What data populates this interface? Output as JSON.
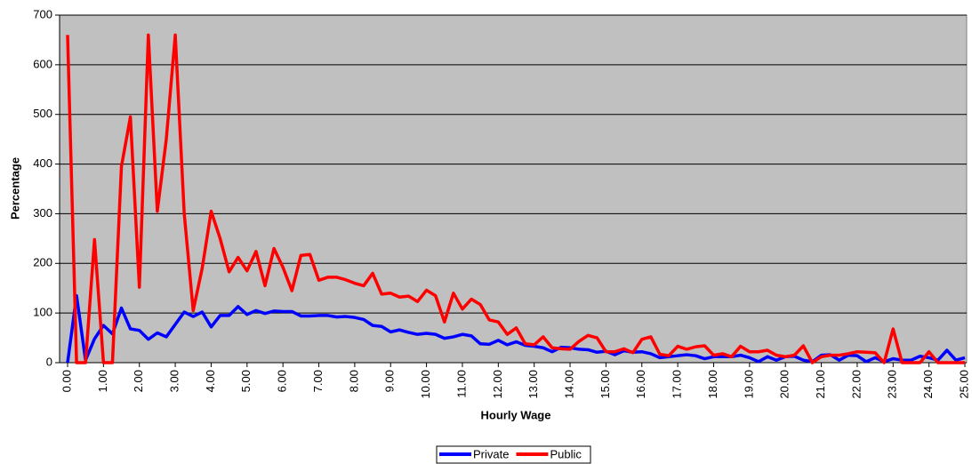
{
  "chart_data": {
    "type": "line",
    "x_label": "Hourly Wage",
    "y_label": "Percentage",
    "x": [
      0,
      0.25,
      0.5,
      0.75,
      1,
      1.25,
      1.5,
      1.75,
      2,
      2.25,
      2.5,
      2.75,
      3,
      3.25,
      3.5,
      3.75,
      4,
      4.25,
      4.5,
      4.75,
      5,
      5.25,
      5.5,
      5.75,
      6,
      6.25,
      6.5,
      6.75,
      7,
      7.25,
      7.5,
      7.75,
      8,
      8.25,
      8.5,
      8.75,
      9,
      9.25,
      9.5,
      9.75,
      10,
      10.25,
      10.5,
      10.75,
      11,
      11.25,
      11.5,
      11.75,
      12,
      12.25,
      12.5,
      12.75,
      13,
      13.25,
      13.5,
      13.75,
      14,
      14.25,
      14.5,
      14.75,
      15,
      15.25,
      15.5,
      15.75,
      16,
      16.25,
      16.5,
      16.75,
      17,
      17.25,
      17.5,
      17.75,
      18,
      18.25,
      18.5,
      18.75,
      19,
      19.25,
      19.5,
      19.75,
      20,
      20.25,
      20.5,
      20.75,
      21,
      21.25,
      21.5,
      21.75,
      22,
      22.25,
      22.5,
      22.75,
      23,
      23.25,
      23.5,
      23.75,
      24,
      24.25,
      24.5,
      24.75,
      25
    ],
    "series": [
      {
        "name": "Private",
        "color": "#0000ff",
        "values": [
          0,
          135,
          5,
          48,
          75,
          58,
          110,
          68,
          65,
          47,
          60,
          52,
          77,
          102,
          93,
          102,
          72,
          95,
          95,
          113,
          97,
          105,
          99,
          104,
          103,
          103,
          94,
          94,
          95,
          95,
          92,
          93,
          91,
          87,
          75,
          73,
          62,
          66,
          61,
          57,
          59,
          57,
          49,
          52,
          57,
          54,
          38,
          37,
          45,
          36,
          42,
          35,
          33,
          30,
          22,
          31,
          30,
          27,
          26,
          21,
          23,
          16,
          24,
          21,
          22,
          18,
          10,
          12,
          14,
          16,
          14,
          8,
          12,
          12,
          12,
          15,
          10,
          2,
          12,
          5,
          12,
          13,
          5,
          2,
          15,
          16,
          5,
          15,
          14,
          2,
          10,
          2,
          8,
          5,
          5,
          13,
          10,
          5,
          25,
          5,
          10
        ]
      },
      {
        "name": "Public",
        "color": "#ff0000",
        "values": [
          660,
          0,
          0,
          248,
          0,
          0,
          395,
          495,
          152,
          660,
          305,
          450,
          660,
          300,
          105,
          190,
          305,
          250,
          183,
          212,
          185,
          224,
          155,
          230,
          192,
          145,
          216,
          218,
          166,
          172,
          172,
          167,
          160,
          155,
          180,
          138,
          140,
          132,
          134,
          123,
          146,
          135,
          82,
          140,
          108,
          128,
          117,
          86,
          82,
          57,
          70,
          38,
          36,
          52,
          30,
          28,
          27,
          43,
          55,
          50,
          22,
          22,
          28,
          20,
          47,
          52,
          17,
          14,
          33,
          27,
          32,
          34,
          15,
          18,
          12,
          33,
          22,
          22,
          25,
          15,
          12,
          15,
          34,
          0,
          12,
          15,
          15,
          18,
          22,
          21,
          20,
          0,
          68,
          0,
          0,
          0,
          22,
          0,
          0,
          0,
          0
        ]
      }
    ],
    "xlim": [
      0,
      25
    ],
    "ylim": [
      0,
      700
    ],
    "xticks": [
      {
        "value": 0,
        "label": "0.00"
      },
      {
        "value": 1,
        "label": "1.00"
      },
      {
        "value": 2,
        "label": "2.00"
      },
      {
        "value": 3,
        "label": "3.00"
      },
      {
        "value": 4,
        "label": "4.00"
      },
      {
        "value": 5,
        "label": "5.00"
      },
      {
        "value": 6,
        "label": "6.00"
      },
      {
        "value": 7,
        "label": "7.00"
      },
      {
        "value": 8,
        "label": "8.00"
      },
      {
        "value": 9,
        "label": "9.00"
      },
      {
        "value": 10,
        "label": "10.00"
      },
      {
        "value": 11,
        "label": "11.00"
      },
      {
        "value": 12,
        "label": "12.00"
      },
      {
        "value": 13,
        "label": "13.00"
      },
      {
        "value": 14,
        "label": "14.00"
      },
      {
        "value": 15,
        "label": "15.00"
      },
      {
        "value": 16,
        "label": "16.00"
      },
      {
        "value": 17,
        "label": "17.00"
      },
      {
        "value": 18,
        "label": "18.00"
      },
      {
        "value": 19,
        "label": "19.00"
      },
      {
        "value": 20,
        "label": "20.00"
      },
      {
        "value": 21,
        "label": "21.00"
      },
      {
        "value": 22,
        "label": "22.00"
      },
      {
        "value": 23,
        "label": "23.00"
      },
      {
        "value": 24,
        "label": "24.00"
      },
      {
        "value": 25,
        "label": "25.00"
      }
    ],
    "yticks": [
      0,
      100,
      200,
      300,
      400,
      500,
      600,
      700
    ],
    "grid": true,
    "legend": "bottom"
  }
}
